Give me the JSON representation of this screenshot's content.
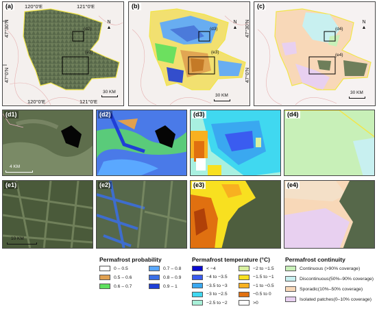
{
  "panels": {
    "a": "(a)",
    "b": "(b)",
    "c": "(c)",
    "d1": "(d1)",
    "d2": "(d2)",
    "d3": "(d3)",
    "d4": "(d4)",
    "e1": "(e1)",
    "e2": "(e2)",
    "e3": "(e3)",
    "e4": "(e4)"
  },
  "coords": {
    "top_left": "120°0'E",
    "top_right": "121°0'E",
    "bottom_left": "120°0'E",
    "bottom_right": "121°0'E",
    "lat_top": "47°30'N",
    "lat_mid": "47°0'N"
  },
  "north": "N",
  "scale_30km": "30 KM",
  "scale_4km": "4 KM",
  "scale_10km": "10 KM",
  "insets": {
    "a": [
      "(d2)",
      "(e2)"
    ],
    "b": [
      "(d3)",
      "(e3)"
    ],
    "c": [
      "(d4)",
      "(e4)"
    ]
  },
  "legend_probability": {
    "title": "Permafrost probability",
    "items": [
      {
        "label": "0 – 0.5",
        "color": "#ffffff"
      },
      {
        "label": "0.5 – 0.6",
        "color": "#e0a050"
      },
      {
        "label": "0.6 – 0.7",
        "color": "#5ee05e"
      },
      {
        "label": "0.7 – 0.8",
        "color": "#5aa8ff"
      },
      {
        "label": "0.8 – 0.9",
        "color": "#3a6fe6"
      },
      {
        "label": "0.9 – 1",
        "color": "#1f3fd6"
      }
    ]
  },
  "legend_temperature": {
    "title": "Permafrost temperature (°C)",
    "items": [
      {
        "label": "< −4",
        "color": "#0a0ad0"
      },
      {
        "label": "−4 to −3.5",
        "color": "#3a5cf0"
      },
      {
        "label": "−3.5 to −3",
        "color": "#3aa8f0"
      },
      {
        "label": "−3 to −2.5",
        "color": "#40d8f0"
      },
      {
        "label": "−2.5 to −2",
        "color": "#a8f0d8"
      },
      {
        "label": "−2 to −1.5",
        "color": "#d8f0a0"
      },
      {
        "label": "−1.5 to −1",
        "color": "#f8e020"
      },
      {
        "label": "−1 to −0.5",
        "color": "#f8b020"
      },
      {
        "label": "−0.5 to 0",
        "color": "#e07010"
      },
      {
        "label": ">0",
        "color": "#ffffff"
      }
    ]
  },
  "legend_continuity": {
    "title": "Permafrost continuity",
    "items": [
      {
        "label": "Continuous (>90% coverage)",
        "color": "#c8f0b8"
      },
      {
        "label": "Discontinuous(50%–90% coverage)",
        "color": "#c8f0f0"
      },
      {
        "label": "Sporadic(10%–50% coverage)",
        "color": "#f8d8b8"
      },
      {
        "label": "Isolated patches(0–10% coverage)",
        "color": "#e8d0f0"
      }
    ]
  }
}
